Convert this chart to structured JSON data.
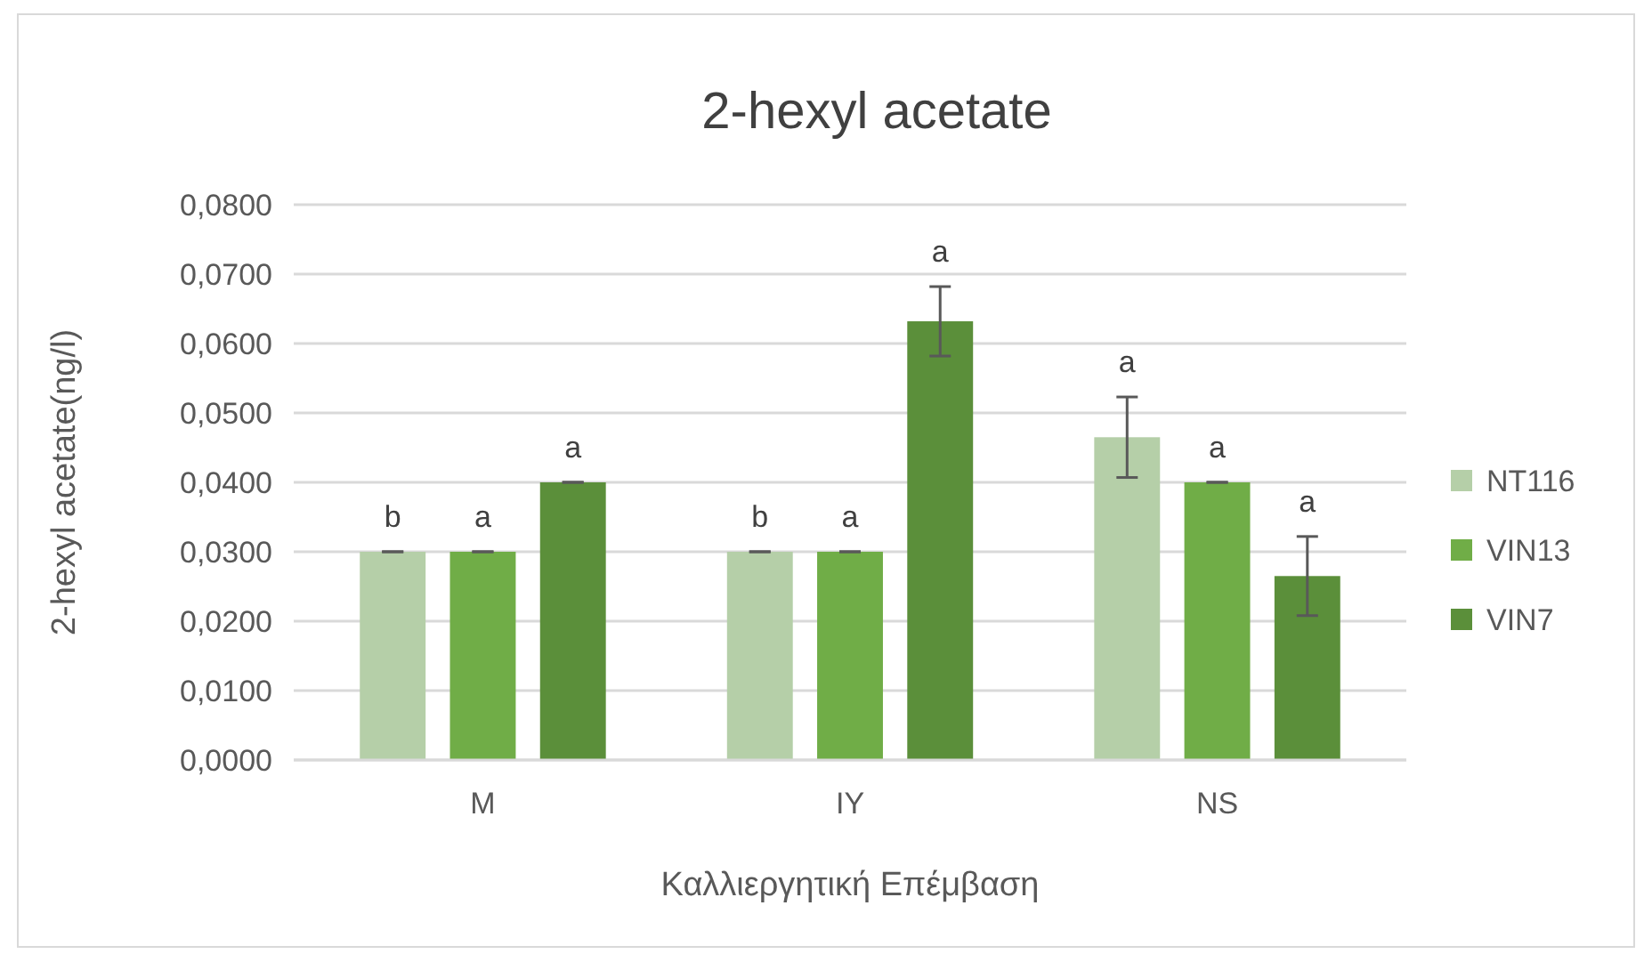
{
  "chart_data": {
    "type": "bar",
    "title": "2-hexyl acetate",
    "xlabel": "Καλλιεργητική Επέμβαση",
    "ylabel": "2-hexyl acetate(ng/l)",
    "categories": [
      "M",
      "IY",
      "NS"
    ],
    "series": [
      {
        "name": "NT116",
        "color": "#b5cfa8",
        "values": [
          0.03,
          0.03,
          0.0465
        ],
        "errors": [
          0,
          0,
          0.0058
        ],
        "value_labels": [
          "b",
          "b",
          "a"
        ]
      },
      {
        "name": "VIN13",
        "color": "#70ad47",
        "values": [
          0.03,
          0.03,
          0.04
        ],
        "errors": [
          0,
          0,
          0
        ],
        "value_labels": [
          "a",
          "a",
          "a"
        ]
      },
      {
        "name": "VIN7",
        "color": "#5b8f3a",
        "values": [
          0.04,
          0.0632,
          0.0265
        ],
        "errors": [
          0,
          0.005,
          0.0057
        ],
        "value_labels": [
          "a",
          "a",
          "a"
        ]
      }
    ],
    "ylim": [
      0,
      0.08
    ],
    "yticks": [
      {
        "value": 0,
        "label": "0,0000"
      },
      {
        "value": 0.01,
        "label": "0,0100"
      },
      {
        "value": 0.02,
        "label": "0,0200"
      },
      {
        "value": 0.03,
        "label": "0,0300"
      },
      {
        "value": 0.04,
        "label": "0,0400"
      },
      {
        "value": 0.05,
        "label": "0,0500"
      },
      {
        "value": 0.06,
        "label": "0,0600"
      },
      {
        "value": 0.07,
        "label": "0,0700"
      },
      {
        "value": 0.08,
        "label": "0,0800"
      }
    ],
    "grid": "y",
    "legend": "right"
  }
}
